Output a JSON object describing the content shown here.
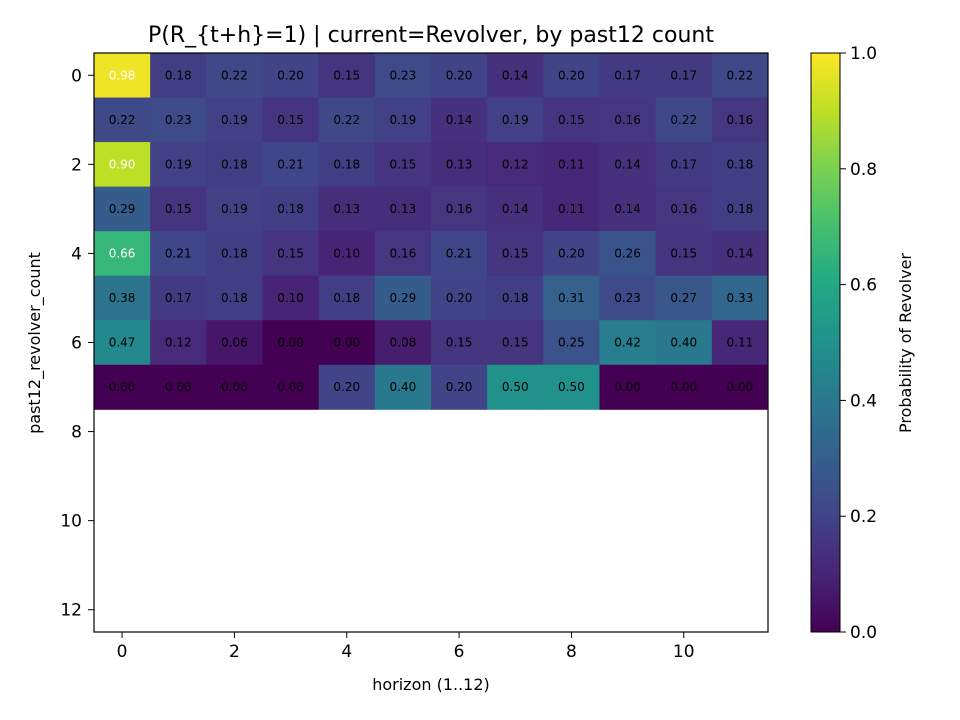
{
  "chart_data": {
    "type": "heatmap",
    "title": "P(R_{t+h}=1) | current=Revolver, by past12 count",
    "xlabel": "horizon (1..12)",
    "ylabel": "past12_revolver_count",
    "colorbar_label": "Probability of Revolver",
    "colormap": "viridis",
    "xlim": [
      -0.5,
      11.5
    ],
    "ylim": [
      12.5,
      -0.5
    ],
    "x_ticks": [
      0,
      2,
      4,
      6,
      8,
      10
    ],
    "y_ticks": [
      0,
      2,
      4,
      6,
      8,
      10,
      12
    ],
    "colorbar_range": [
      0.0,
      1.0
    ],
    "colorbar_ticks": [
      "0.0",
      "0.2",
      "0.4",
      "0.6",
      "0.8",
      "1.0"
    ],
    "rows": [
      0,
      1,
      2,
      3,
      4,
      5,
      6,
      7
    ],
    "values": [
      [
        0.98,
        0.18,
        0.22,
        0.2,
        0.15,
        0.23,
        0.2,
        0.14,
        0.2,
        0.17,
        0.17,
        0.22
      ],
      [
        0.22,
        0.23,
        0.19,
        0.15,
        0.22,
        0.19,
        0.14,
        0.19,
        0.15,
        0.16,
        0.22,
        0.16
      ],
      [
        0.9,
        0.19,
        0.18,
        0.21,
        0.18,
        0.15,
        0.13,
        0.12,
        0.11,
        0.14,
        0.17,
        0.18
      ],
      [
        0.29,
        0.15,
        0.19,
        0.18,
        0.13,
        0.13,
        0.16,
        0.14,
        0.11,
        0.14,
        0.16,
        0.18
      ],
      [
        0.66,
        0.21,
        0.18,
        0.15,
        0.1,
        0.16,
        0.21,
        0.15,
        0.2,
        0.26,
        0.15,
        0.14
      ],
      [
        0.38,
        0.17,
        0.18,
        0.1,
        0.18,
        0.29,
        0.2,
        0.18,
        0.31,
        0.23,
        0.27,
        0.33
      ],
      [
        0.47,
        0.12,
        0.06,
        0.0,
        0.0,
        0.08,
        0.15,
        0.15,
        0.25,
        0.42,
        0.4,
        0.11
      ],
      [
        0.0,
        0.0,
        0.0,
        0.0,
        0.2,
        0.4,
        0.2,
        0.5,
        0.5,
        0.0,
        0.0,
        0.0
      ]
    ]
  }
}
